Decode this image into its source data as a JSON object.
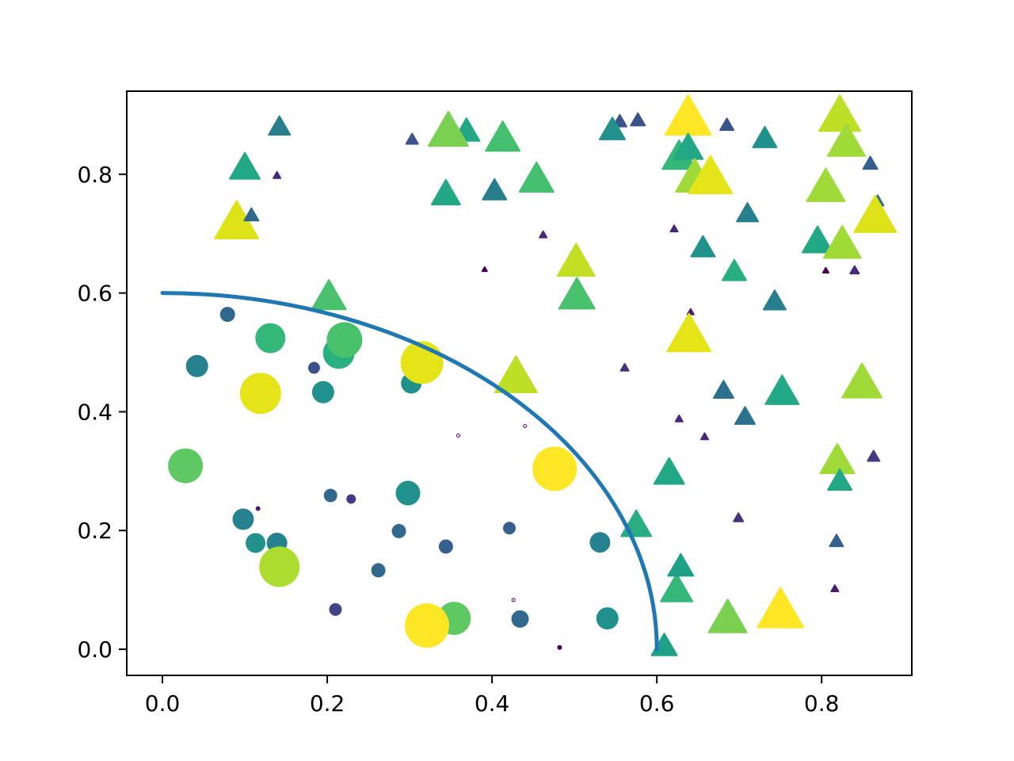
{
  "figure": {
    "background": "#ffffff",
    "plot_background": "#ffffff",
    "spine_color": "#000000",
    "tick_color": "#000000",
    "tick_label_color": "#000000"
  },
  "chart_data": {
    "type": "scatter",
    "title": "",
    "xlabel": "",
    "ylabel": "",
    "grid": false,
    "legend": null,
    "xlim": [
      -0.0433,
      0.9094
    ],
    "ylim": [
      -0.044,
      0.94
    ],
    "x_tick_values": [
      0.0,
      0.2,
      0.4,
      0.6,
      0.8
    ],
    "x_tick_labels": [
      "0.0",
      "0.2",
      "0.4",
      "0.6",
      "0.8"
    ],
    "y_tick_values": [
      0.0,
      0.2,
      0.4,
      0.6,
      0.8
    ],
    "y_tick_labels": [
      "0.0",
      "0.2",
      "0.4",
      "0.6",
      "0.8"
    ],
    "curve": {
      "shape": "quarter-ellipse-arc",
      "center": [
        0.0,
        0.0
      ],
      "radius": 0.6,
      "start": [
        0.0,
        0.6
      ],
      "end": [
        0.6,
        0.0
      ],
      "color": "#1f77b4",
      "stroke_width": 5
    },
    "points": [
      {
        "x": 0.079,
        "y": 0.564,
        "marker": "circle",
        "size": 19,
        "color": "#31688e"
      },
      {
        "x": 0.131,
        "y": 0.524,
        "marker": "circle",
        "size": 38,
        "color": "#35b779"
      },
      {
        "x": 0.214,
        "y": 0.499,
        "marker": "circle",
        "size": 40,
        "color": "#2ab07f"
      },
      {
        "x": 0.221,
        "y": 0.521,
        "marker": "circle",
        "size": 45,
        "color": "#4ac16d"
      },
      {
        "x": 0.042,
        "y": 0.477,
        "marker": "circle",
        "size": 28,
        "color": "#26828e"
      },
      {
        "x": 0.119,
        "y": 0.431,
        "marker": "circle",
        "size": 52,
        "color": "#e5e419"
      },
      {
        "x": 0.184,
        "y": 0.474,
        "marker": "circle",
        "size": 15,
        "color": "#3b528b"
      },
      {
        "x": 0.195,
        "y": 0.433,
        "marker": "circle",
        "size": 28,
        "color": "#21918c"
      },
      {
        "x": 0.028,
        "y": 0.309,
        "marker": "circle",
        "size": 44,
        "color": "#5ec962"
      },
      {
        "x": 0.302,
        "y": 0.448,
        "marker": "circle",
        "size": 26,
        "color": "#21918c"
      },
      {
        "x": 0.315,
        "y": 0.483,
        "marker": "circle",
        "size": 54,
        "color": "#e5e419"
      },
      {
        "x": 0.476,
        "y": 0.304,
        "marker": "circle",
        "size": 56,
        "color": "#fde725"
      },
      {
        "x": 0.204,
        "y": 0.259,
        "marker": "circle",
        "size": 17,
        "color": "#31688e"
      },
      {
        "x": 0.229,
        "y": 0.253,
        "marker": "circle",
        "size": 12,
        "color": "#443983"
      },
      {
        "x": 0.116,
        "y": 0.237,
        "marker": "circle",
        "size": 6,
        "color": "#481f70"
      },
      {
        "x": 0.098,
        "y": 0.219,
        "marker": "circle",
        "size": 27,
        "color": "#26828e"
      },
      {
        "x": 0.113,
        "y": 0.179,
        "marker": "circle",
        "size": 25,
        "color": "#21918c"
      },
      {
        "x": 0.139,
        "y": 0.179,
        "marker": "circle",
        "size": 26,
        "color": "#26828e"
      },
      {
        "x": 0.142,
        "y": 0.139,
        "marker": "circle",
        "size": 51,
        "color": "#addc30"
      },
      {
        "x": 0.262,
        "y": 0.133,
        "marker": "circle",
        "size": 18,
        "color": "#31688e"
      },
      {
        "x": 0.21,
        "y": 0.067,
        "marker": "circle",
        "size": 16,
        "color": "#414487"
      },
      {
        "x": 0.298,
        "y": 0.263,
        "marker": "circle",
        "size": 31,
        "color": "#21918c"
      },
      {
        "x": 0.287,
        "y": 0.199,
        "marker": "circle",
        "size": 18,
        "color": "#31688e"
      },
      {
        "x": 0.344,
        "y": 0.173,
        "marker": "circle",
        "size": 18,
        "color": "#355f8d"
      },
      {
        "x": 0.421,
        "y": 0.204,
        "marker": "circle",
        "size": 16,
        "color": "#355f8d"
      },
      {
        "x": 0.531,
        "y": 0.18,
        "marker": "circle",
        "size": 26,
        "color": "#26828e"
      },
      {
        "x": 0.354,
        "y": 0.052,
        "marker": "circle",
        "size": 42,
        "color": "#5ec962"
      },
      {
        "x": 0.321,
        "y": 0.04,
        "marker": "circle",
        "size": 56,
        "color": "#fde725"
      },
      {
        "x": 0.434,
        "y": 0.051,
        "marker": "circle",
        "size": 22,
        "color": "#31688e"
      },
      {
        "x": 0.54,
        "y": 0.052,
        "marker": "circle",
        "size": 28,
        "color": "#21918c"
      },
      {
        "x": 0.142,
        "y": 0.877,
        "marker": "triangle",
        "size": 27,
        "color": "#277f8e"
      },
      {
        "x": 0.1,
        "y": 0.807,
        "marker": "triangle",
        "size": 38,
        "color": "#22a884"
      },
      {
        "x": 0.139,
        "y": 0.797,
        "marker": "triangle",
        "size": 9,
        "color": "#482878"
      },
      {
        "x": 0.09,
        "y": 0.713,
        "marker": "triangle",
        "size": 55,
        "color": "#dde318"
      },
      {
        "x": 0.108,
        "y": 0.729,
        "marker": "triangle",
        "size": 18,
        "color": "#31688e"
      },
      {
        "x": 0.303,
        "y": 0.857,
        "marker": "triangle",
        "size": 15,
        "color": "#3b528b"
      },
      {
        "x": 0.369,
        "y": 0.869,
        "marker": "triangle",
        "size": 33,
        "color": "#22a884"
      },
      {
        "x": 0.347,
        "y": 0.867,
        "marker": "triangle",
        "size": 50,
        "color": "#7ad151"
      },
      {
        "x": 0.413,
        "y": 0.856,
        "marker": "triangle",
        "size": 43,
        "color": "#44bf70"
      },
      {
        "x": 0.555,
        "y": 0.887,
        "marker": "triangle",
        "size": 17,
        "color": "#3b528b"
      },
      {
        "x": 0.546,
        "y": 0.871,
        "marker": "triangle",
        "size": 32,
        "color": "#21918c"
      },
      {
        "x": 0.577,
        "y": 0.889,
        "marker": "triangle",
        "size": 18,
        "color": "#3b528b"
      },
      {
        "x": 0.454,
        "y": 0.787,
        "marker": "triangle",
        "size": 43,
        "color": "#44bf70"
      },
      {
        "x": 0.344,
        "y": 0.763,
        "marker": "triangle",
        "size": 36,
        "color": "#22a884"
      },
      {
        "x": 0.403,
        "y": 0.769,
        "marker": "triangle",
        "size": 30,
        "color": "#277f8e"
      },
      {
        "x": 0.462,
        "y": 0.697,
        "marker": "triangle",
        "size": 9,
        "color": "#482878"
      },
      {
        "x": 0.391,
        "y": 0.639,
        "marker": "triangle",
        "size": 6,
        "color": "#440154"
      },
      {
        "x": 0.502,
        "y": 0.647,
        "marker": "triangle",
        "size": 47,
        "color": "#c2df23"
      },
      {
        "x": 0.503,
        "y": 0.591,
        "marker": "triangle",
        "size": 45,
        "color": "#4ac16d"
      },
      {
        "x": 0.638,
        "y": 0.889,
        "marker": "triangle",
        "size": 58,
        "color": "#fde725"
      },
      {
        "x": 0.685,
        "y": 0.881,
        "marker": "triangle",
        "size": 17,
        "color": "#3b528b"
      },
      {
        "x": 0.731,
        "y": 0.857,
        "marker": "triangle",
        "size": 30,
        "color": "#21918c"
      },
      {
        "x": 0.627,
        "y": 0.825,
        "marker": "triangle",
        "size": 42,
        "color": "#35b779"
      },
      {
        "x": 0.638,
        "y": 0.84,
        "marker": "triangle",
        "size": 37,
        "color": "#22a884"
      },
      {
        "x": 0.646,
        "y": 0.789,
        "marker": "triangle",
        "size": 48,
        "color": "#a0da39"
      },
      {
        "x": 0.665,
        "y": 0.789,
        "marker": "triangle",
        "size": 55,
        "color": "#e5e419"
      },
      {
        "x": 0.71,
        "y": 0.731,
        "marker": "triangle",
        "size": 27,
        "color": "#277f8e"
      },
      {
        "x": 0.621,
        "y": 0.707,
        "marker": "triangle",
        "size": 9,
        "color": "#482878"
      },
      {
        "x": 0.656,
        "y": 0.673,
        "marker": "triangle",
        "size": 30,
        "color": "#21918c"
      },
      {
        "x": 0.694,
        "y": 0.633,
        "marker": "triangle",
        "size": 30,
        "color": "#28ae80"
      },
      {
        "x": 0.822,
        "y": 0.893,
        "marker": "triangle",
        "size": 52,
        "color": "#bddf26"
      },
      {
        "x": 0.83,
        "y": 0.849,
        "marker": "triangle",
        "size": 47,
        "color": "#a0da39"
      },
      {
        "x": 0.859,
        "y": 0.816,
        "marker": "triangle",
        "size": 18,
        "color": "#355f8d"
      },
      {
        "x": 0.805,
        "y": 0.773,
        "marker": "triangle",
        "size": 48,
        "color": "#a0da39"
      },
      {
        "x": 0.868,
        "y": 0.753,
        "marker": "triangle",
        "size": 15,
        "color": "#31688e"
      },
      {
        "x": 0.865,
        "y": 0.723,
        "marker": "triangle",
        "size": 53,
        "color": "#dde318"
      },
      {
        "x": 0.795,
        "y": 0.683,
        "marker": "triangle",
        "size": 38,
        "color": "#22a884"
      },
      {
        "x": 0.825,
        "y": 0.677,
        "marker": "triangle",
        "size": 47,
        "color": "#a0da39"
      },
      {
        "x": 0.805,
        "y": 0.637,
        "marker": "triangle",
        "size": 7,
        "color": "#440154"
      },
      {
        "x": 0.84,
        "y": 0.637,
        "marker": "triangle",
        "size": 11,
        "color": "#482878"
      },
      {
        "x": 0.202,
        "y": 0.589,
        "marker": "triangle",
        "size": 43,
        "color": "#4ac16d"
      },
      {
        "x": 0.429,
        "y": 0.453,
        "marker": "triangle",
        "size": 53,
        "color": "#bddf26"
      },
      {
        "x": 0.561,
        "y": 0.473,
        "marker": "triangle",
        "size": 10,
        "color": "#46327e"
      },
      {
        "x": 0.743,
        "y": 0.583,
        "marker": "triangle",
        "size": 28,
        "color": "#277f8e"
      },
      {
        "x": 0.641,
        "y": 0.567,
        "marker": "triangle",
        "size": 8,
        "color": "#481f70"
      },
      {
        "x": 0.639,
        "y": 0.523,
        "marker": "triangle",
        "size": 55,
        "color": "#e5e419"
      },
      {
        "x": 0.681,
        "y": 0.433,
        "marker": "triangle",
        "size": 25,
        "color": "#2c728e"
      },
      {
        "x": 0.752,
        "y": 0.429,
        "marker": "triangle",
        "size": 42,
        "color": "#22a884"
      },
      {
        "x": 0.849,
        "y": 0.443,
        "marker": "triangle",
        "size": 50,
        "color": "#a0da39"
      },
      {
        "x": 0.707,
        "y": 0.389,
        "marker": "triangle",
        "size": 25,
        "color": "#2c728e"
      },
      {
        "x": 0.627,
        "y": 0.387,
        "marker": "triangle",
        "size": 9,
        "color": "#482878"
      },
      {
        "x": 0.658,
        "y": 0.357,
        "marker": "triangle",
        "size": 9,
        "color": "#482878"
      },
      {
        "x": 0.819,
        "y": 0.313,
        "marker": "triangle",
        "size": 43,
        "color": "#a0da39"
      },
      {
        "x": 0.822,
        "y": 0.28,
        "marker": "triangle",
        "size": 30,
        "color": "#22a884"
      },
      {
        "x": 0.863,
        "y": 0.323,
        "marker": "triangle",
        "size": 15,
        "color": "#443983"
      },
      {
        "x": 0.615,
        "y": 0.293,
        "marker": "triangle",
        "size": 38,
        "color": "#22a884"
      },
      {
        "x": 0.575,
        "y": 0.205,
        "marker": "triangle",
        "size": 38,
        "color": "#28ae80"
      },
      {
        "x": 0.699,
        "y": 0.22,
        "marker": "triangle",
        "size": 12,
        "color": "#46327e"
      },
      {
        "x": 0.818,
        "y": 0.18,
        "marker": "triangle",
        "size": 17,
        "color": "#355f8d"
      },
      {
        "x": 0.624,
        "y": 0.096,
        "marker": "triangle",
        "size": 40,
        "color": "#35b779"
      },
      {
        "x": 0.629,
        "y": 0.136,
        "marker": "triangle",
        "size": 32,
        "color": "#1fa187"
      },
      {
        "x": 0.816,
        "y": 0.101,
        "marker": "triangle",
        "size": 9,
        "color": "#481f70"
      },
      {
        "x": 0.686,
        "y": 0.047,
        "marker": "triangle",
        "size": 48,
        "color": "#7ad151"
      },
      {
        "x": 0.75,
        "y": 0.059,
        "marker": "triangle",
        "size": 58,
        "color": "#fde725"
      },
      {
        "x": 0.609,
        "y": 0.002,
        "marker": "triangle",
        "size": 32,
        "color": "#1fa187"
      },
      {
        "x": 0.44,
        "y": 0.376,
        "marker": "dot_open",
        "size": 4,
        "color": "#721f81"
      },
      {
        "x": 0.359,
        "y": 0.36,
        "marker": "dot_open",
        "size": 4,
        "color": "#721f81"
      },
      {
        "x": 0.426,
        "y": 0.083,
        "marker": "dot_open",
        "size": 4,
        "color": "#721f81"
      },
      {
        "x": 0.482,
        "y": 0.003,
        "marker": "dot",
        "size": 6,
        "color": "#440154"
      }
    ]
  }
}
